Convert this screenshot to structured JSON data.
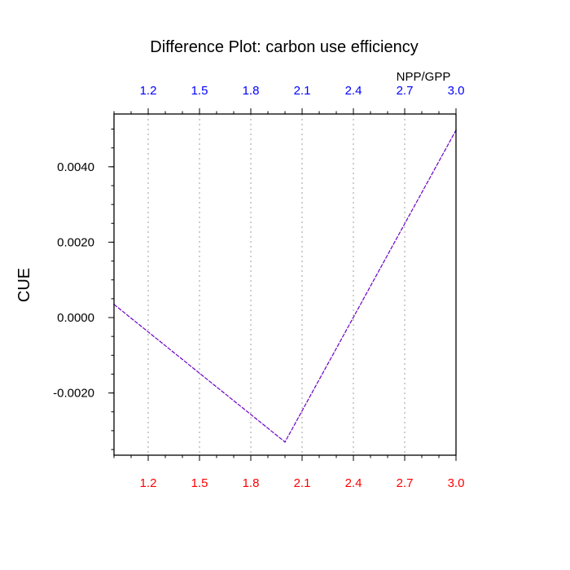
{
  "chart_data": {
    "type": "line",
    "title": "Difference Plot: carbon use efficiency",
    "top_axis_label": "NPP/GPP",
    "ylabel": "CUE",
    "xlabel": "",
    "xlim": [
      1.0,
      3.0
    ],
    "ylim": [
      -0.00365,
      0.0054
    ],
    "x_ticks": [
      1.2,
      1.5,
      1.8,
      2.1,
      2.4,
      2.7,
      3.0
    ],
    "x_tick_labels": [
      "1.2",
      "1.5",
      "1.8",
      "2.1",
      "2.4",
      "2.7",
      "3.0"
    ],
    "y_ticks": [
      0.004,
      0.002,
      0.0,
      -0.002
    ],
    "y_tick_labels": [
      "0.0040",
      "0.0020",
      "0.0000",
      "-0.0020"
    ],
    "grid": "vertical dotted",
    "colors": {
      "bottom_ticks": "#ff0000",
      "top_ticks": "#0000ff",
      "line": "#6a00c8",
      "grid": "#b4b4b4",
      "frame": "#000000"
    },
    "x": [
      1.0,
      2.0,
      3.0
    ],
    "series": [
      {
        "values": [
          0.00035,
          -0.0033,
          0.00497
        ]
      }
    ]
  }
}
